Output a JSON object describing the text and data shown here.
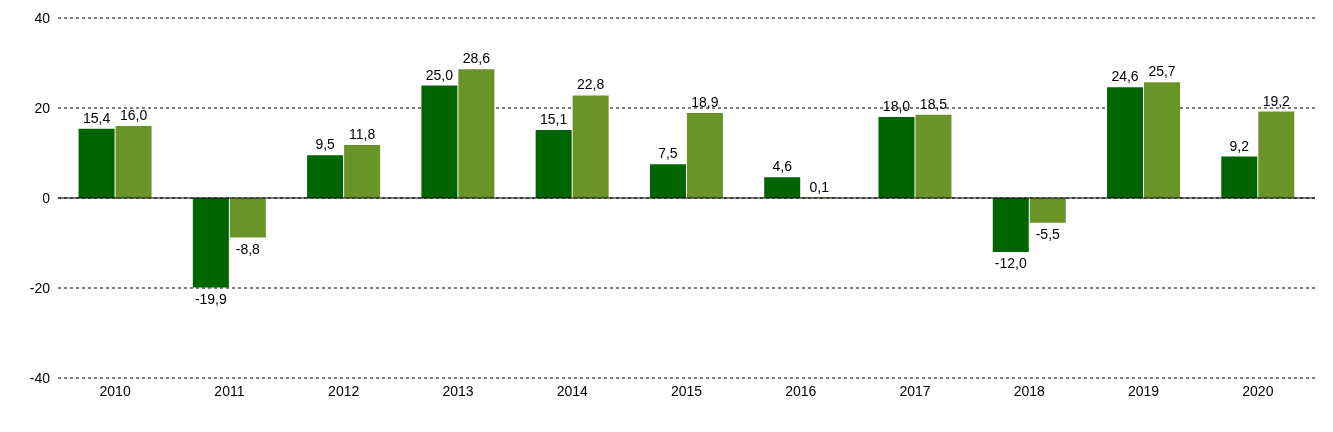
{
  "chart_data": {
    "type": "bar",
    "categories": [
      "2010",
      "2011",
      "2012",
      "2013",
      "2014",
      "2015",
      "2016",
      "2017",
      "2018",
      "2019",
      "2020"
    ],
    "series": [
      {
        "color": "#006400",
        "values": [
          15.4,
          -19.9,
          9.5,
          25.0,
          15.1,
          7.5,
          4.6,
          18.0,
          -12.0,
          24.6,
          9.2
        ],
        "value_labels": [
          "15,4",
          "-19,9",
          "9,5",
          "25,0",
          "15,1",
          "7,5",
          "4,6",
          "18,0",
          "-12,0",
          "24,6",
          "9,2"
        ]
      },
      {
        "color": "#6b9428",
        "values": [
          16.0,
          -8.8,
          11.8,
          28.6,
          22.8,
          18.9,
          0.1,
          18.5,
          -5.5,
          25.7,
          19.2
        ],
        "value_labels": [
          "16,0",
          "-8,8",
          "11,8",
          "28,6",
          "22,8",
          "18,9",
          "0,1",
          "18,5",
          "-5,5",
          "25,7",
          "19,2"
        ]
      }
    ],
    "ylim": [
      -40,
      40
    ],
    "yticks": [
      -40,
      -20,
      0,
      20,
      40
    ],
    "grid": "y",
    "legend": false
  }
}
